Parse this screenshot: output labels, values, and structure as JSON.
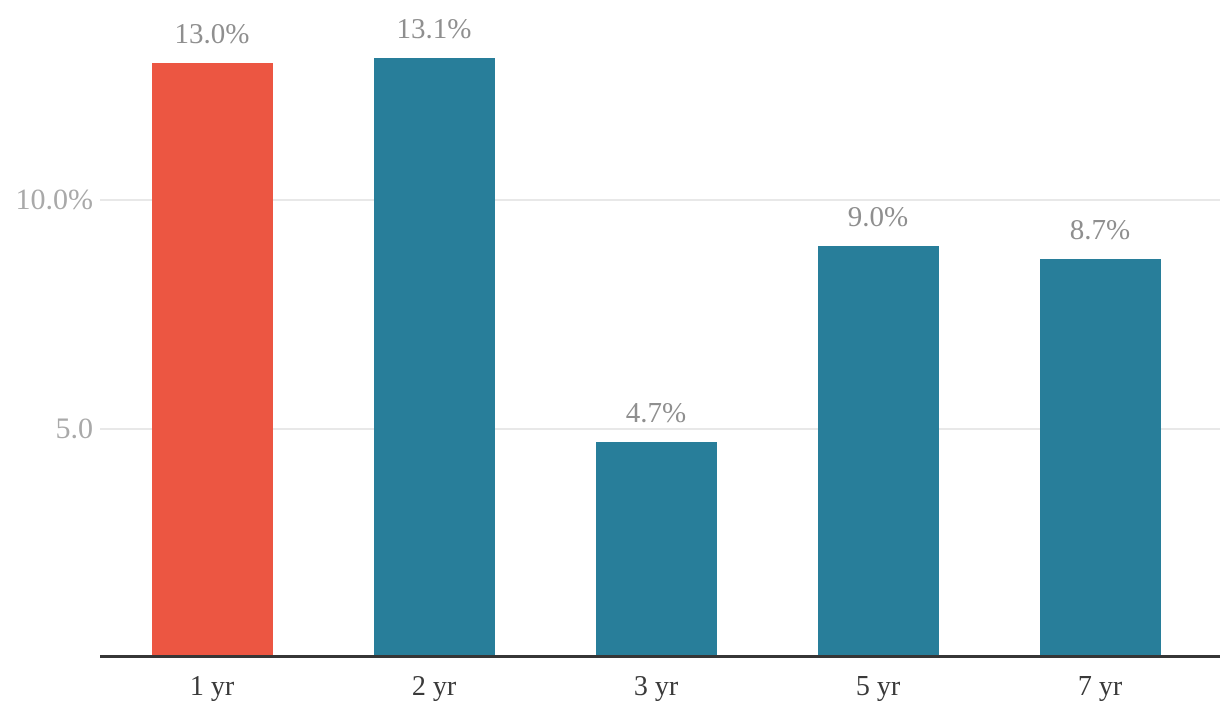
{
  "chart_data": {
    "type": "bar",
    "title": "",
    "xlabel": "",
    "ylabel": "",
    "categories": [
      "1 yr",
      "2 yr",
      "3 yr",
      "5 yr",
      "7 yr"
    ],
    "values": [
      13.0,
      13.1,
      4.7,
      9.0,
      8.7
    ],
    "value_labels": [
      "13.0%",
      "13.1%",
      "4.7%",
      "9.0%",
      "8.7%"
    ],
    "bar_colors": [
      "#ec5642",
      "#287e9a",
      "#287e9a",
      "#287e9a",
      "#287e9a"
    ],
    "highlight_category": "1 yr",
    "ylim": [
      0,
      14.4
    ],
    "yticks": [
      {
        "value": 5.0,
        "label": "5.0"
      },
      {
        "value": 10.0,
        "label": "10.0%"
      }
    ],
    "grid": "horizontal-only",
    "legend": "none"
  },
  "colors": {
    "highlight_bar": "#ec5642",
    "default_bar": "#287e9a",
    "value_label_text": "#8f8f8f",
    "ytick_label_text": "#a9a9a9",
    "category_label_text": "#3a3a3a",
    "gridline": "#e8e8e8",
    "axis_line": "#363636",
    "background": "#ffffff"
  }
}
